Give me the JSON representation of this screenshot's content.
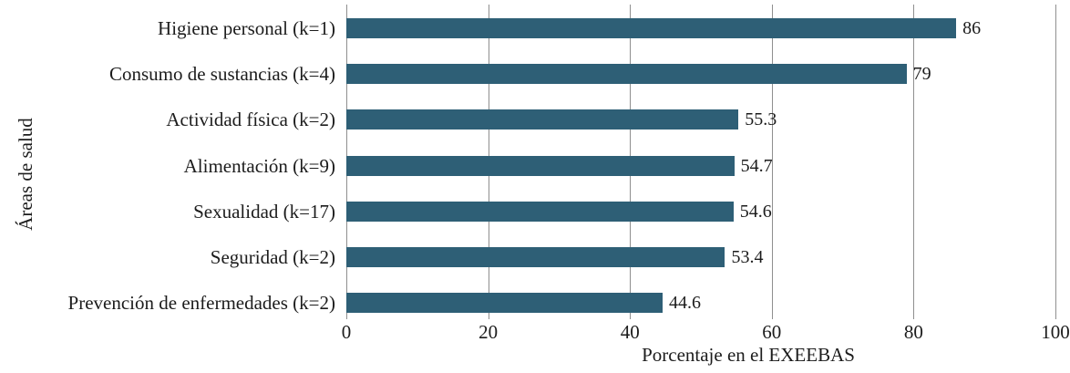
{
  "chart_data": {
    "type": "bar",
    "orientation": "horizontal",
    "title": "",
    "xlabel": "Porcentaje en el EXEEBAS",
    "ylabel": "Áreas de salud",
    "categories": [
      "Higiene personal (k=1)",
      "Consumo de sustancias (k=4)",
      "Actividad física (k=2)",
      "Alimentación (k=9)",
      "Sexualidad (k=17)",
      "Seguridad (k=2)",
      "Prevención de enfermedades (k=2)"
    ],
    "values": [
      86,
      79,
      55.3,
      54.7,
      54.6,
      53.4,
      44.6
    ],
    "value_labels": [
      "86",
      "79",
      "55.3",
      "54.7",
      "54.6",
      "53.4",
      "44.6"
    ],
    "xlim": [
      0,
      100
    ],
    "xticks": [
      0,
      20,
      40,
      60,
      80,
      100
    ],
    "xtick_labels": [
      "0",
      "20",
      "40",
      "60",
      "80",
      "100"
    ],
    "grid": "vertical-only",
    "legend": "none",
    "colors": {
      "bar": "#2e5f76",
      "gridline": "#8f8f8f",
      "text": "#1c1c1c"
    }
  }
}
